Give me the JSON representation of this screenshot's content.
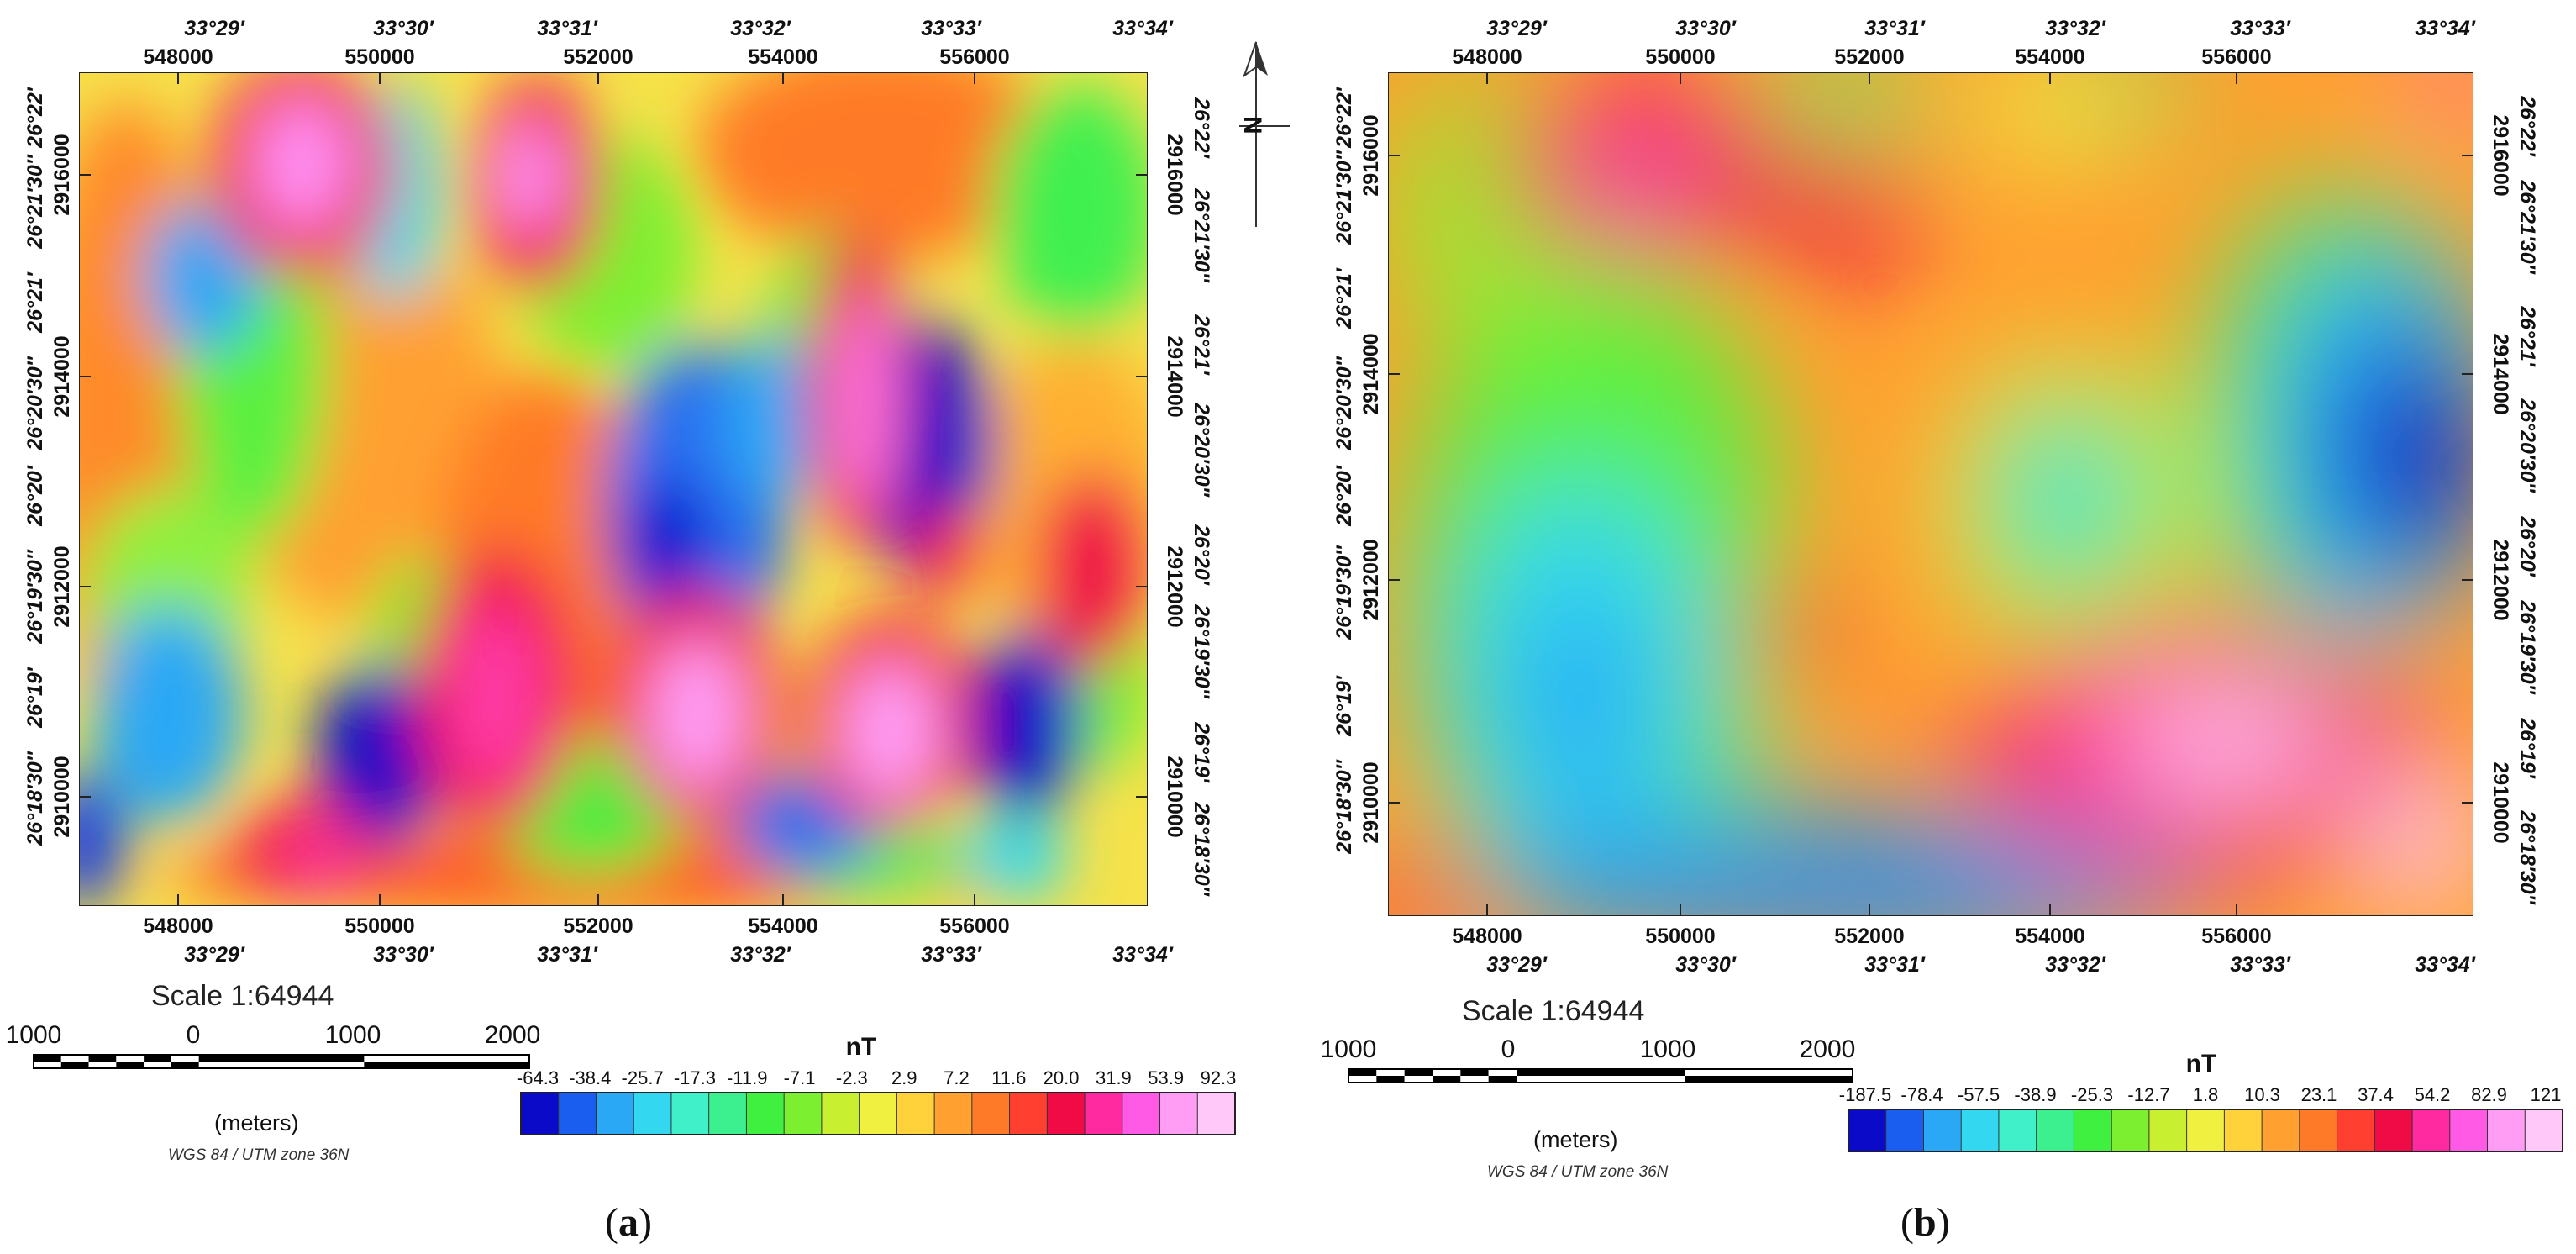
{
  "panels": [
    {
      "id": "a",
      "caption_letter": "a",
      "utm_x_ticks": [
        "548000",
        "550000",
        "552000",
        "554000",
        "556000"
      ],
      "geo_x_ticks": [
        "33°29′",
        "33°30′",
        "33°31′",
        "33°32′",
        "33°33′",
        "33°34′"
      ],
      "utm_y_ticks": [
        "2916000",
        "2914000",
        "2912000",
        "2910000"
      ],
      "geo_y_ticks": [
        "26°22′",
        "26°21′30″",
        "26°21′",
        "26°20′30″",
        "26°20′",
        "26°19′30″",
        "26°19′",
        "26°18′30″"
      ],
      "scale_text": "Scale 1:64944",
      "scalebar_labels": [
        "1000",
        "0",
        "1000",
        "2000"
      ],
      "scalebar_unit": "(meters)",
      "projection": "WGS 84 / UTM zone 36N",
      "colorbar_unit": "nT",
      "colorbar_labels": [
        "-64.3",
        "-38.4",
        "-25.7",
        "-17.3",
        "-11.9",
        "-7.1",
        "-2.3",
        "2.9",
        "7.2",
        "11.6",
        "20.0",
        "31.9",
        "53.9",
        "92.3"
      ],
      "colors": [
        "#0a0ac8",
        "#1a5ef0",
        "#2aa8f5",
        "#33d8f0",
        "#3ff0c8",
        "#3cf090",
        "#40f040",
        "#7cf030",
        "#c8f030",
        "#f0f040",
        "#ffd23c",
        "#ffa030",
        "#ff7a28",
        "#ff4030",
        "#f00a46",
        "#ff2aa0",
        "#ff5ae6",
        "#ff9cf4",
        "#ffc8f8"
      ]
    },
    {
      "id": "b",
      "caption_letter": "b",
      "utm_x_ticks": [
        "548000",
        "550000",
        "552000",
        "554000",
        "556000"
      ],
      "geo_x_ticks": [
        "33°29′",
        "33°30′",
        "33°31′",
        "33°32′",
        "33°33′",
        "33°34′"
      ],
      "utm_y_ticks": [
        "2916000",
        "2914000",
        "2912000",
        "2910000"
      ],
      "geo_y_ticks": [
        "26°22′",
        "26°21′30″",
        "26°21′",
        "26°20′30″",
        "26°20′",
        "26°19′30″",
        "26°19′",
        "26°18′30″"
      ],
      "scale_text": "Scale 1:64944",
      "scalebar_labels": [
        "1000",
        "0",
        "1000",
        "2000"
      ],
      "scalebar_unit": "(meters)",
      "projection": "WGS 84 / UTM zone 36N",
      "colorbar_unit": "nT",
      "colorbar_labels": [
        "-187.5",
        "-78.4",
        "-57.5",
        "-38.9",
        "-25.3",
        "-12.7",
        "1.8",
        "10.3",
        "23.1",
        "37.4",
        "54.2",
        "82.9",
        "121"
      ],
      "colors": [
        "#0a0ac8",
        "#1a5ef0",
        "#2aa8f5",
        "#33d8f0",
        "#3ff0c8",
        "#3cf090",
        "#40f040",
        "#7cf030",
        "#c8f030",
        "#f0f040",
        "#ffd23c",
        "#ffa030",
        "#ff7a28",
        "#ff4030",
        "#f00a46",
        "#ff2aa0",
        "#ff5ae6",
        "#ff9cf4",
        "#ffc8f8"
      ]
    }
  ],
  "north_arrow_letter": "N"
}
